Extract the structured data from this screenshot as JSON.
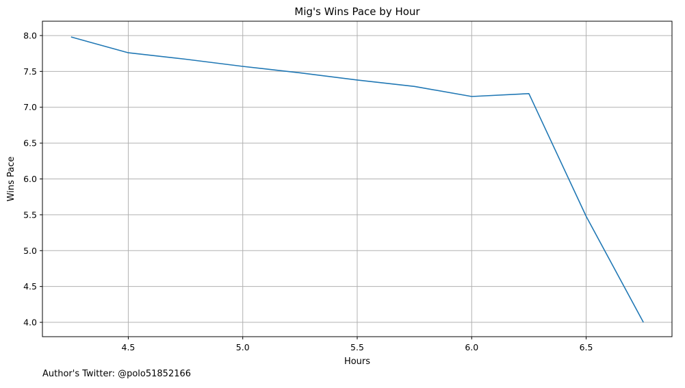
{
  "chart_data": {
    "type": "line",
    "title": "Mig's Wins Pace by Hour",
    "xlabel": "Hours",
    "ylabel": "Wins Pace",
    "xlim": [
      4.125,
      6.875
    ],
    "ylim": [
      3.8,
      8.2
    ],
    "x_ticks": [
      4.5,
      5.0,
      5.5,
      6.0,
      6.5
    ],
    "x_tick_labels": [
      "4.5",
      "5.0",
      "5.5",
      "6.0",
      "6.5"
    ],
    "y_ticks": [
      4.0,
      4.5,
      5.0,
      5.5,
      6.0,
      6.5,
      7.0,
      7.5,
      8.0
    ],
    "y_tick_labels": [
      "4.0",
      "4.5",
      "5.0",
      "5.5",
      "6.0",
      "6.5",
      "7.0",
      "7.5",
      "8.0"
    ],
    "grid": true,
    "series": [
      {
        "color": "#1f77b4",
        "x": [
          4.25,
          4.5,
          4.75,
          5.0,
          5.25,
          5.5,
          5.75,
          6.0,
          6.25,
          6.5,
          6.75
        ],
        "y": [
          7.98,
          7.76,
          7.67,
          7.57,
          7.48,
          7.38,
          7.29,
          7.15,
          7.19,
          5.48,
          4.0
        ]
      }
    ],
    "footer": "Author's Twitter: @polo51852166"
  }
}
